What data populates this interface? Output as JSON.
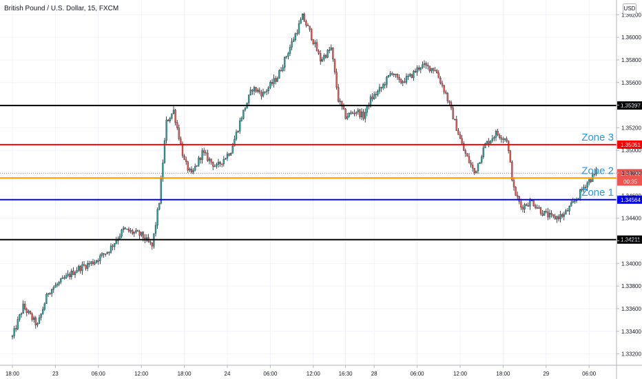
{
  "header": {
    "title": "British Pound / U.S. Dollar, 15, FXCM",
    "currency": "USD",
    "countdown": "00:35"
  },
  "chart_data": {
    "type": "candlestick",
    "title": "British Pound / U.S. Dollar, 15, FXCM",
    "xlabel": "",
    "ylabel": "",
    "ylim": [
      1.331,
      1.3633
    ],
    "y_ticks": [
      "1.33200",
      "1.33400",
      "1.33600",
      "1.33800",
      "1.34000",
      "1.34200",
      "1.34400",
      "1.34600",
      "1.34800",
      "1.35000",
      "1.35200",
      "1.35400",
      "1.35600",
      "1.35800",
      "1.36000",
      "1.36200"
    ],
    "x_ticks": [
      {
        "label": "18:00",
        "bar": 0
      },
      {
        "label": "23",
        "bar": 24
      },
      {
        "label": "06:00",
        "bar": 48
      },
      {
        "label": "12:00",
        "bar": 72
      },
      {
        "label": "18:00",
        "bar": 96
      },
      {
        "label": "24",
        "bar": 120
      },
      {
        "label": "06:00",
        "bar": 144
      },
      {
        "label": "12:00",
        "bar": 168
      },
      {
        "label": "16:30",
        "bar": 186
      },
      {
        "label": "28",
        "bar": 202
      },
      {
        "label": "06:00",
        "bar": 226
      },
      {
        "label": "12:00",
        "bar": 250
      },
      {
        "label": "18:00",
        "bar": 274
      },
      {
        "label": "29",
        "bar": 298
      },
      {
        "label": "06:00",
        "bar": 322
      }
    ],
    "colors": {
      "up": "#26a69a",
      "down": "#ef5350",
      "wick": "#131722"
    },
    "levels": [
      {
        "price": 1.35397,
        "label": "1.35397",
        "color": "#000000",
        "zone": ""
      },
      {
        "price": 1.35051,
        "label": "1.35051",
        "color": "#ff0000",
        "zone": "Zone 3"
      },
      {
        "price": 1.34756,
        "label": "1.34756",
        "color": "#ff9800",
        "zone": "Zone 2"
      },
      {
        "price": 1.34564,
        "label": "1.34564",
        "color": "#0000ff",
        "zone": "Zone 1"
      },
      {
        "price": 1.34211,
        "label": "1.34211",
        "color": "#000000",
        "zone": ""
      }
    ],
    "current_price": {
      "price": 1.34798,
      "label": "1.34798",
      "color": "#ef5350"
    },
    "zone_label_color": "#2196f3",
    "path_keypoints": [
      [
        0,
        1.3335
      ],
      [
        6,
        1.3362
      ],
      [
        14,
        1.3345
      ],
      [
        20,
        1.3375
      ],
      [
        28,
        1.3385
      ],
      [
        36,
        1.3395
      ],
      [
        46,
        1.3402
      ],
      [
        54,
        1.3412
      ],
      [
        62,
        1.343
      ],
      [
        72,
        1.3425
      ],
      [
        78,
        1.3415
      ],
      [
        82,
        1.3455
      ],
      [
        86,
        1.3525
      ],
      [
        90,
        1.3535
      ],
      [
        96,
        1.349
      ],
      [
        100,
        1.3478
      ],
      [
        106,
        1.3498
      ],
      [
        114,
        1.3485
      ],
      [
        122,
        1.35
      ],
      [
        128,
        1.353
      ],
      [
        134,
        1.3555
      ],
      [
        140,
        1.355
      ],
      [
        148,
        1.3565
      ],
      [
        156,
        1.3595
      ],
      [
        162,
        1.3618
      ],
      [
        166,
        1.3605
      ],
      [
        172,
        1.358
      ],
      [
        178,
        1.359
      ],
      [
        182,
        1.3545
      ],
      [
        186,
        1.353
      ],
      [
        192,
        1.3535
      ],
      [
        196,
        1.353
      ],
      [
        200,
        1.3545
      ],
      [
        206,
        1.3555
      ],
      [
        212,
        1.357
      ],
      [
        216,
        1.356
      ],
      [
        222,
        1.3565
      ],
      [
        228,
        1.3575
      ],
      [
        236,
        1.3572
      ],
      [
        242,
        1.355
      ],
      [
        248,
        1.352
      ],
      [
        252,
        1.35
      ],
      [
        258,
        1.348
      ],
      [
        264,
        1.3505
      ],
      [
        270,
        1.3515
      ],
      [
        276,
        1.351
      ],
      [
        280,
        1.3465
      ],
      [
        284,
        1.345
      ],
      [
        290,
        1.3455
      ],
      [
        296,
        1.3445
      ],
      [
        302,
        1.344
      ],
      [
        308,
        1.3443
      ],
      [
        314,
        1.3455
      ],
      [
        320,
        1.347
      ],
      [
        326,
        1.348
      ]
    ],
    "bar_count": 327
  }
}
